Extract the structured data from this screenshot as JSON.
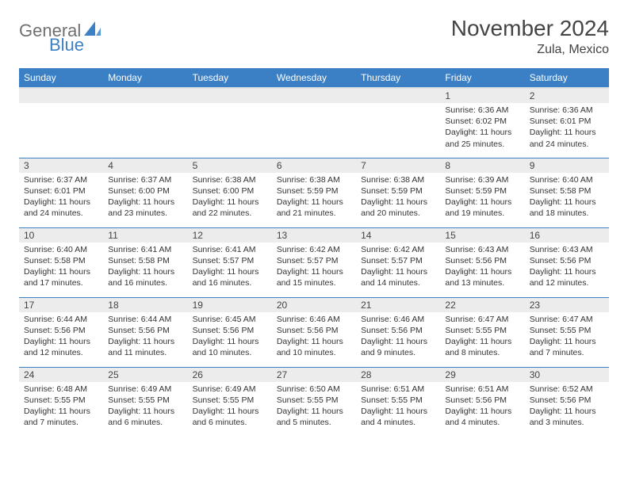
{
  "brand": {
    "general": "General",
    "blue": "Blue"
  },
  "title": "November 2024",
  "location": "Zula, Mexico",
  "colors": {
    "accent": "#3b7fc4",
    "header_bg": "#3b7fc4",
    "header_text": "#ffffff",
    "daynum_bg": "#ececec",
    "text": "#333333",
    "logo_gray": "#707070"
  },
  "weekdays": [
    "Sunday",
    "Monday",
    "Tuesday",
    "Wednesday",
    "Thursday",
    "Friday",
    "Saturday"
  ],
  "weeks": [
    [
      null,
      null,
      null,
      null,
      null,
      {
        "n": "1",
        "sr": "6:36 AM",
        "ss": "6:02 PM",
        "dl": "11 hours and 25 minutes."
      },
      {
        "n": "2",
        "sr": "6:36 AM",
        "ss": "6:01 PM",
        "dl": "11 hours and 24 minutes."
      }
    ],
    [
      {
        "n": "3",
        "sr": "6:37 AM",
        "ss": "6:01 PM",
        "dl": "11 hours and 24 minutes."
      },
      {
        "n": "4",
        "sr": "6:37 AM",
        "ss": "6:00 PM",
        "dl": "11 hours and 23 minutes."
      },
      {
        "n": "5",
        "sr": "6:38 AM",
        "ss": "6:00 PM",
        "dl": "11 hours and 22 minutes."
      },
      {
        "n": "6",
        "sr": "6:38 AM",
        "ss": "5:59 PM",
        "dl": "11 hours and 21 minutes."
      },
      {
        "n": "7",
        "sr": "6:38 AM",
        "ss": "5:59 PM",
        "dl": "11 hours and 20 minutes."
      },
      {
        "n": "8",
        "sr": "6:39 AM",
        "ss": "5:59 PM",
        "dl": "11 hours and 19 minutes."
      },
      {
        "n": "9",
        "sr": "6:40 AM",
        "ss": "5:58 PM",
        "dl": "11 hours and 18 minutes."
      }
    ],
    [
      {
        "n": "10",
        "sr": "6:40 AM",
        "ss": "5:58 PM",
        "dl": "11 hours and 17 minutes."
      },
      {
        "n": "11",
        "sr": "6:41 AM",
        "ss": "5:58 PM",
        "dl": "11 hours and 16 minutes."
      },
      {
        "n": "12",
        "sr": "6:41 AM",
        "ss": "5:57 PM",
        "dl": "11 hours and 16 minutes."
      },
      {
        "n": "13",
        "sr": "6:42 AM",
        "ss": "5:57 PM",
        "dl": "11 hours and 15 minutes."
      },
      {
        "n": "14",
        "sr": "6:42 AM",
        "ss": "5:57 PM",
        "dl": "11 hours and 14 minutes."
      },
      {
        "n": "15",
        "sr": "6:43 AM",
        "ss": "5:56 PM",
        "dl": "11 hours and 13 minutes."
      },
      {
        "n": "16",
        "sr": "6:43 AM",
        "ss": "5:56 PM",
        "dl": "11 hours and 12 minutes."
      }
    ],
    [
      {
        "n": "17",
        "sr": "6:44 AM",
        "ss": "5:56 PM",
        "dl": "11 hours and 12 minutes."
      },
      {
        "n": "18",
        "sr": "6:44 AM",
        "ss": "5:56 PM",
        "dl": "11 hours and 11 minutes."
      },
      {
        "n": "19",
        "sr": "6:45 AM",
        "ss": "5:56 PM",
        "dl": "11 hours and 10 minutes."
      },
      {
        "n": "20",
        "sr": "6:46 AM",
        "ss": "5:56 PM",
        "dl": "11 hours and 10 minutes."
      },
      {
        "n": "21",
        "sr": "6:46 AM",
        "ss": "5:56 PM",
        "dl": "11 hours and 9 minutes."
      },
      {
        "n": "22",
        "sr": "6:47 AM",
        "ss": "5:55 PM",
        "dl": "11 hours and 8 minutes."
      },
      {
        "n": "23",
        "sr": "6:47 AM",
        "ss": "5:55 PM",
        "dl": "11 hours and 7 minutes."
      }
    ],
    [
      {
        "n": "24",
        "sr": "6:48 AM",
        "ss": "5:55 PM",
        "dl": "11 hours and 7 minutes."
      },
      {
        "n": "25",
        "sr": "6:49 AM",
        "ss": "5:55 PM",
        "dl": "11 hours and 6 minutes."
      },
      {
        "n": "26",
        "sr": "6:49 AM",
        "ss": "5:55 PM",
        "dl": "11 hours and 6 minutes."
      },
      {
        "n": "27",
        "sr": "6:50 AM",
        "ss": "5:55 PM",
        "dl": "11 hours and 5 minutes."
      },
      {
        "n": "28",
        "sr": "6:51 AM",
        "ss": "5:55 PM",
        "dl": "11 hours and 4 minutes."
      },
      {
        "n": "29",
        "sr": "6:51 AM",
        "ss": "5:56 PM",
        "dl": "11 hours and 4 minutes."
      },
      {
        "n": "30",
        "sr": "6:52 AM",
        "ss": "5:56 PM",
        "dl": "11 hours and 3 minutes."
      }
    ]
  ],
  "labels": {
    "sunrise": "Sunrise:",
    "sunset": "Sunset:",
    "daylight": "Daylight:"
  }
}
